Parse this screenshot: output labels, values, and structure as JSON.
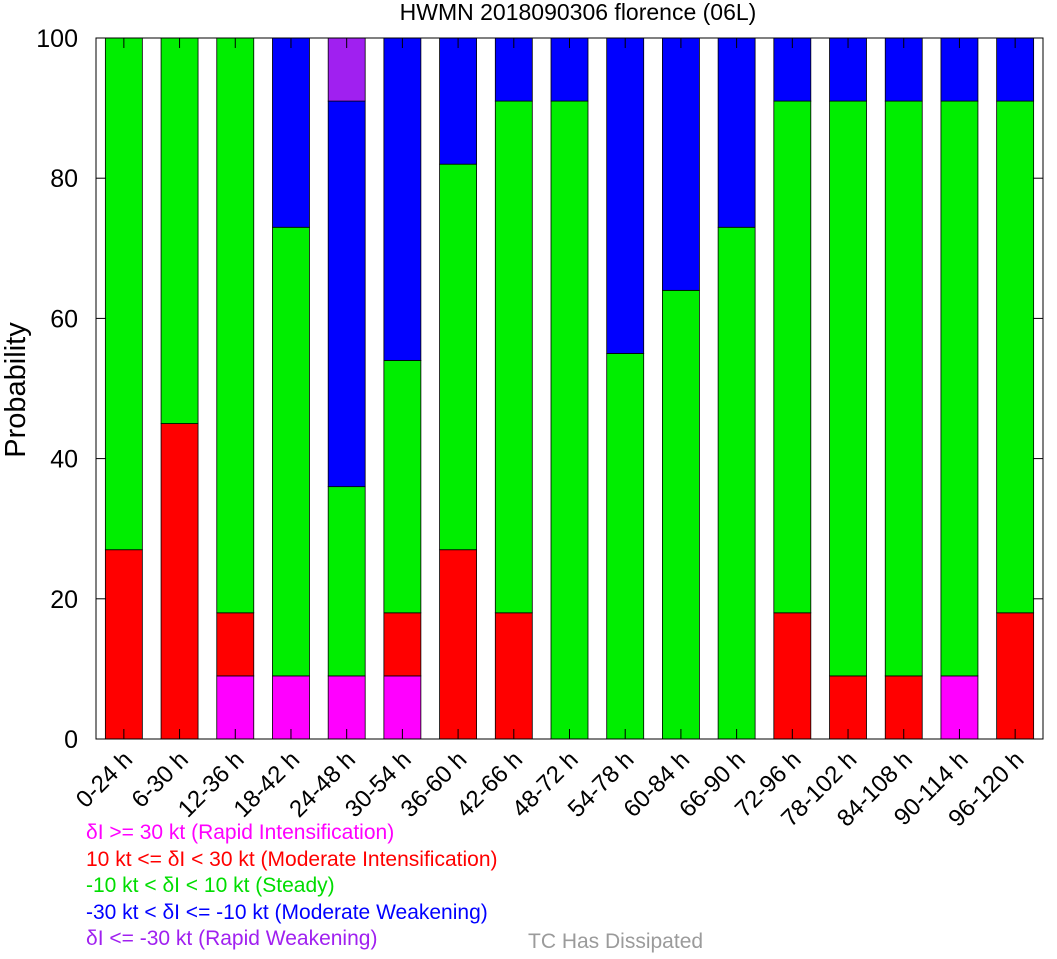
{
  "chart_data": {
    "type": "bar",
    "stacked": true,
    "title": "HWMN 2018090306 florence (06L)",
    "xlabel": "",
    "ylabel": "Probability",
    "ylim": [
      0,
      100
    ],
    "yticks": [
      0,
      20,
      40,
      60,
      80,
      100
    ],
    "categories": [
      "0-24 h",
      "6-30 h",
      "12-36 h",
      "18-42 h",
      "24-48 h",
      "30-54 h",
      "36-60 h",
      "42-66 h",
      "48-72 h",
      "54-78 h",
      "60-84 h",
      "66-90 h",
      "72-96 h",
      "78-102 h",
      "84-108 h",
      "90-114 h",
      "96-120 h"
    ],
    "series": [
      {
        "name": "Rapid Intensification",
        "color": "#ff00ff",
        "values": [
          0,
          0,
          9,
          9,
          9,
          9,
          0,
          0,
          0,
          0,
          0,
          0,
          0,
          0,
          0,
          9,
          0
        ]
      },
      {
        "name": "Moderate Intensification",
        "color": "#ff0000",
        "values": [
          27,
          45,
          9,
          0,
          0,
          9,
          27,
          18,
          0,
          0,
          0,
          0,
          18,
          9,
          9,
          0,
          18
        ]
      },
      {
        "name": "Steady",
        "color": "#00ee00",
        "values": [
          73,
          55,
          82,
          64,
          27,
          36,
          55,
          73,
          91,
          55,
          64,
          73,
          73,
          82,
          82,
          82,
          73
        ]
      },
      {
        "name": "Moderate Weakening",
        "color": "#0000ff",
        "values": [
          0,
          0,
          0,
          27,
          55,
          46,
          18,
          9,
          9,
          45,
          36,
          27,
          9,
          9,
          9,
          9,
          9
        ]
      },
      {
        "name": "Rapid Weakening",
        "color": "#a020f0",
        "values": [
          0,
          0,
          0,
          0,
          9,
          0,
          0,
          0,
          0,
          0,
          0,
          0,
          0,
          0,
          0,
          0,
          0
        ]
      }
    ]
  },
  "legend": {
    "items": [
      {
        "text": "δI >= 30 kt (Rapid Intensification)",
        "color": "#ff00ff"
      },
      {
        "text": "10 kt <= δI < 30 kt (Moderate Intensification)",
        "color": "#ff0000"
      },
      {
        "text": "-10 kt < δI < 10 kt (Steady)",
        "color": "#00dd00"
      },
      {
        "text": "-30 kt < δI <= -10 kt (Moderate Weakening)",
        "color": "#0000ff"
      },
      {
        "text": "δI <= -30 kt (Rapid Weakening)",
        "color": "#a020f0"
      }
    ],
    "dissipated": "TC Has Dissipated",
    "dissipated_color": "#9b9b9b"
  }
}
